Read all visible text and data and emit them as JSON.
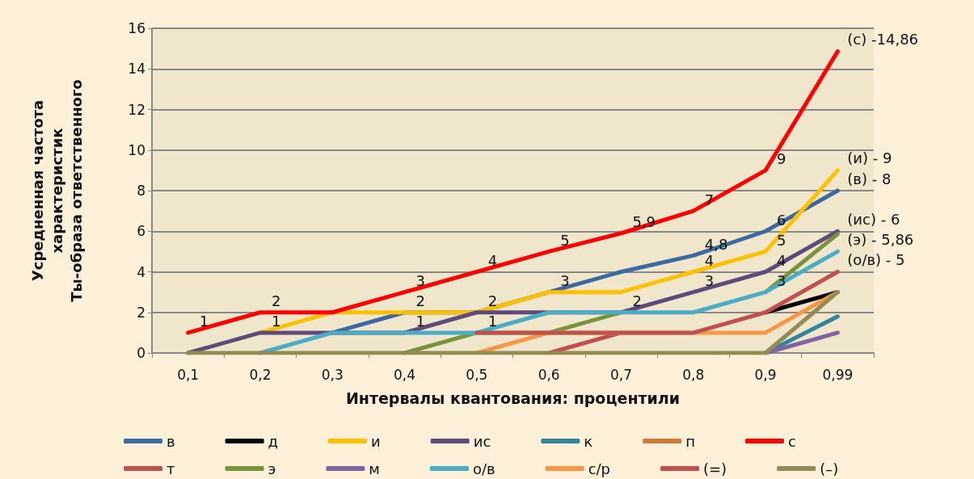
{
  "chart_data": {
    "type": "line",
    "xlabel": "Интервалы квантования: процентили",
    "ylabel": "Усредненная частота\nхарактеристик\nТы-образа ответственного",
    "categories": [
      "0,1",
      "0,2",
      "0,3",
      "0,4",
      "0,5",
      "0,6",
      "0,7",
      "0,8",
      "0,9",
      "0,99"
    ],
    "ylim": [
      0,
      16
    ],
    "yticks": [
      0,
      2,
      4,
      6,
      8,
      10,
      12,
      14,
      16
    ],
    "grid": "y",
    "legend": "bottom",
    "marker": "none",
    "line_style": "solid",
    "annotations": [
      {
        "text": "(с) -14,86",
        "x": "0,99",
        "y": 14.86
      },
      {
        "text": "(и) - 9",
        "x": "0,99",
        "y": 9
      },
      {
        "text": "(в) - 8",
        "x": "0,99",
        "y": 8
      },
      {
        "text": "(ис) - 6",
        "x": "0,99",
        "y": 6
      },
      {
        "text": "(э) - 5,86",
        "x": "0,99",
        "y": 5.86
      },
      {
        "text": "(о/в) - 5",
        "x": "0,99",
        "y": 5
      }
    ],
    "series": [
      {
        "name": "в",
        "color": "#3c6aa0",
        "values": [
          null,
          null,
          1,
          2,
          2,
          3,
          4,
          4.8,
          6,
          8
        ],
        "value_labels": [
          null,
          null,
          null,
          "2",
          null,
          "3",
          null,
          "4,8",
          "6",
          null
        ]
      },
      {
        "name": "д",
        "color": "#000000",
        "values": [
          null,
          null,
          null,
          null,
          null,
          null,
          null,
          null,
          2,
          3
        ]
      },
      {
        "name": "и",
        "color": "#ffc000",
        "values": [
          null,
          1,
          2,
          2,
          2,
          3,
          3,
          4,
          5,
          9
        ],
        "value_labels": [
          null,
          null,
          null,
          null,
          "2",
          null,
          null,
          "4",
          "5",
          null
        ]
      },
      {
        "name": "ис",
        "color": "#604a7b",
        "values": [
          0,
          1,
          1,
          1,
          2,
          2,
          2,
          3,
          4,
          6
        ],
        "value_labels": [
          null,
          "1",
          null,
          null,
          null,
          null,
          "2",
          "3",
          "4",
          null
        ]
      },
      {
        "name": "к",
        "color": "#31849b",
        "values": [
          null,
          null,
          null,
          null,
          null,
          null,
          null,
          null,
          0,
          1.8
        ]
      },
      {
        "name": "п",
        "color": "#d07a35",
        "values": [
          null,
          null,
          null,
          null,
          null,
          null,
          null,
          null,
          null,
          null
        ]
      },
      {
        "name": "с",
        "color": "#ff0000",
        "values": [
          1,
          2,
          2,
          3,
          4,
          5,
          5.9,
          7,
          9,
          14.86
        ],
        "value_labels": [
          "1",
          "2",
          null,
          "3",
          "4",
          "5",
          "5,9",
          "7",
          "9",
          null
        ]
      },
      {
        "name": "т",
        "color": "#c0504d",
        "values": [
          null,
          null,
          null,
          null,
          null,
          0,
          1,
          null,
          null,
          null
        ]
      },
      {
        "name": "э",
        "color": "#77933c",
        "values": [
          null,
          null,
          null,
          0,
          1,
          1,
          2,
          null,
          3,
          5.86
        ],
        "value_labels": [
          null,
          null,
          null,
          null,
          "1",
          null,
          null,
          null,
          null,
          null
        ]
      },
      {
        "name": "м",
        "color": "#8064a2",
        "values": [
          null,
          null,
          null,
          null,
          null,
          null,
          null,
          null,
          0,
          1
        ]
      },
      {
        "name": "о/в",
        "color": "#4bacc6",
        "values": [
          null,
          0,
          1,
          1,
          1,
          2,
          2,
          2,
          3,
          5
        ],
        "value_labels": [
          null,
          null,
          null,
          "1",
          null,
          null,
          null,
          null,
          "3",
          null
        ]
      },
      {
        "name": "с/р",
        "color": "#f79646",
        "values": [
          null,
          null,
          null,
          null,
          0,
          1,
          1,
          1,
          1,
          3
        ]
      },
      {
        "name": "(=)",
        "color": "#c0504d",
        "values": [
          null,
          null,
          null,
          null,
          1,
          1,
          1,
          1,
          2,
          4
        ]
      },
      {
        "name": "(–)",
        "color": "#948a54",
        "values": [
          0,
          0,
          0,
          0,
          0,
          0,
          0,
          0,
          0,
          3
        ]
      }
    ]
  }
}
